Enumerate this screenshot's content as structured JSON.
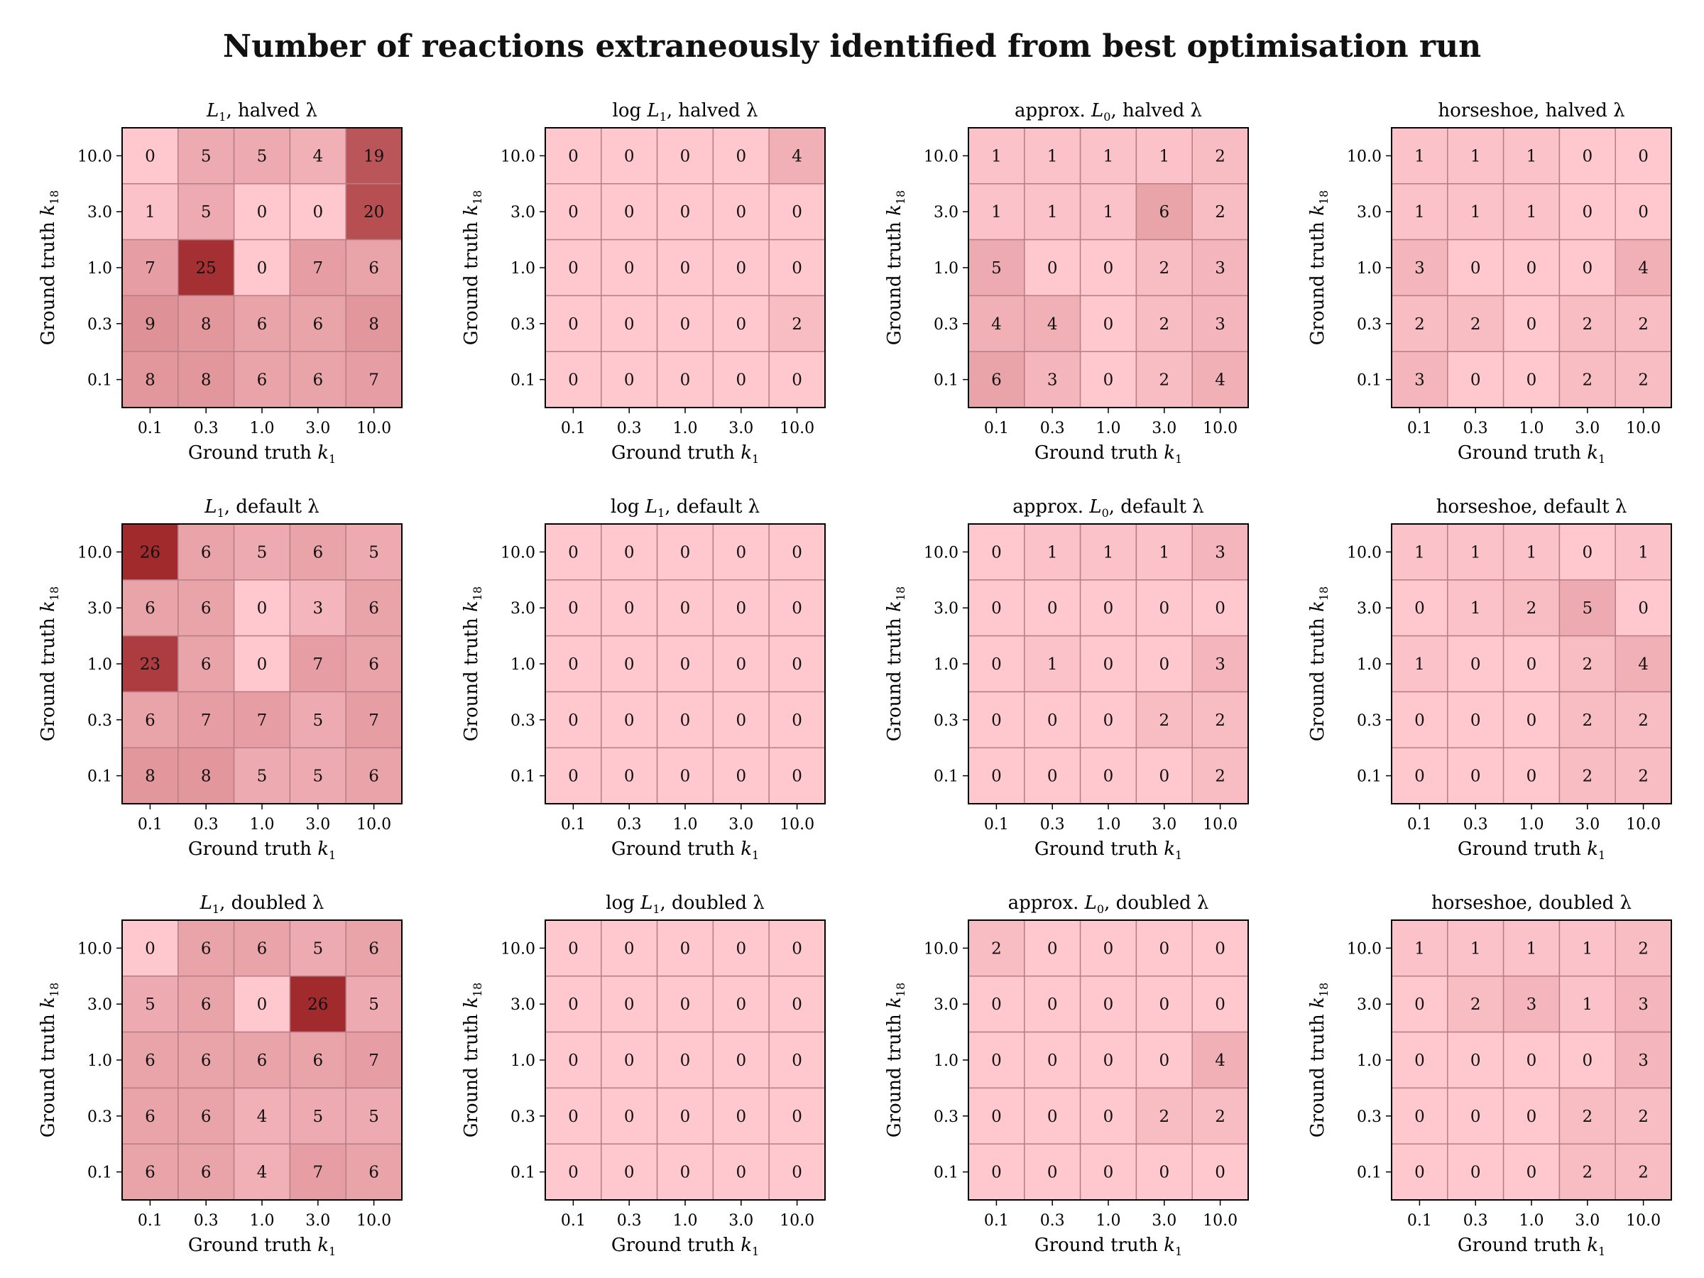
{
  "figure": {
    "title": "Number of reactions extraneously identified from best optimisation run"
  },
  "colors": {
    "low": "#ffc8cf",
    "high": "#a12a2d",
    "cell_edge": "#b87e86",
    "frame": "#000000"
  },
  "chart_data": [
    {
      "type": "heatmap",
      "title": {
        "pre": "",
        "math": "L",
        "sub": "1",
        "post": ", halved λ"
      },
      "xlabel": {
        "pre": "Ground truth ",
        "math": "k",
        "sub": "1"
      },
      "ylabel": {
        "pre": "Ground truth ",
        "math": "k",
        "sub": "18"
      },
      "x_categories": [
        "0.1",
        "0.3",
        "1.0",
        "3.0",
        "10.0"
      ],
      "y_categories": [
        "10.0",
        "3.0",
        "1.0",
        "0.3",
        "0.1"
      ],
      "values": [
        [
          0,
          5,
          5,
          4,
          19
        ],
        [
          1,
          5,
          0,
          0,
          20
        ],
        [
          7,
          25,
          0,
          7,
          6
        ],
        [
          9,
          8,
          6,
          6,
          8
        ],
        [
          8,
          8,
          6,
          6,
          7
        ]
      ]
    },
    {
      "type": "heatmap",
      "title": {
        "pre": "log ",
        "math": "L",
        "sub": "1",
        "post": ", halved λ"
      },
      "xlabel": {
        "pre": "Ground truth ",
        "math": "k",
        "sub": "1"
      },
      "ylabel": {
        "pre": "Ground truth ",
        "math": "k",
        "sub": "18"
      },
      "x_categories": [
        "0.1",
        "0.3",
        "1.0",
        "3.0",
        "10.0"
      ],
      "y_categories": [
        "10.0",
        "3.0",
        "1.0",
        "0.3",
        "0.1"
      ],
      "values": [
        [
          0,
          0,
          0,
          0,
          4
        ],
        [
          0,
          0,
          0,
          0,
          0
        ],
        [
          0,
          0,
          0,
          0,
          0
        ],
        [
          0,
          0,
          0,
          0,
          2
        ],
        [
          0,
          0,
          0,
          0,
          0
        ]
      ]
    },
    {
      "type": "heatmap",
      "title": {
        "pre": "approx. ",
        "math": "L",
        "sub": "0",
        "post": ", halved λ"
      },
      "xlabel": {
        "pre": "Ground truth ",
        "math": "k",
        "sub": "1"
      },
      "ylabel": {
        "pre": "Ground truth ",
        "math": "k",
        "sub": "18"
      },
      "x_categories": [
        "0.1",
        "0.3",
        "1.0",
        "3.0",
        "10.0"
      ],
      "y_categories": [
        "10.0",
        "3.0",
        "1.0",
        "0.3",
        "0.1"
      ],
      "values": [
        [
          1,
          1,
          1,
          1,
          2
        ],
        [
          1,
          1,
          1,
          6,
          2
        ],
        [
          5,
          0,
          0,
          2,
          3
        ],
        [
          4,
          4,
          0,
          2,
          3
        ],
        [
          6,
          3,
          0,
          2,
          4
        ]
      ]
    },
    {
      "type": "heatmap",
      "title": {
        "pre": "horseshoe, halved λ",
        "math": "",
        "sub": "",
        "post": ""
      },
      "xlabel": {
        "pre": "Ground truth ",
        "math": "k",
        "sub": "1"
      },
      "ylabel": {
        "pre": "Ground truth ",
        "math": "k",
        "sub": "18"
      },
      "x_categories": [
        "0.1",
        "0.3",
        "1.0",
        "3.0",
        "10.0"
      ],
      "y_categories": [
        "10.0",
        "3.0",
        "1.0",
        "0.3",
        "0.1"
      ],
      "values": [
        [
          1,
          1,
          1,
          0,
          0
        ],
        [
          1,
          1,
          1,
          0,
          0
        ],
        [
          3,
          0,
          0,
          0,
          4
        ],
        [
          2,
          2,
          0,
          2,
          2
        ],
        [
          3,
          0,
          0,
          2,
          2
        ]
      ]
    },
    {
      "type": "heatmap",
      "title": {
        "pre": "",
        "math": "L",
        "sub": "1",
        "post": ", default λ"
      },
      "xlabel": {
        "pre": "Ground truth ",
        "math": "k",
        "sub": "1"
      },
      "ylabel": {
        "pre": "Ground truth ",
        "math": "k",
        "sub": "18"
      },
      "x_categories": [
        "0.1",
        "0.3",
        "1.0",
        "3.0",
        "10.0"
      ],
      "y_categories": [
        "10.0",
        "3.0",
        "1.0",
        "0.3",
        "0.1"
      ],
      "values": [
        [
          26,
          6,
          5,
          6,
          5
        ],
        [
          6,
          6,
          0,
          3,
          6
        ],
        [
          23,
          6,
          0,
          7,
          6
        ],
        [
          6,
          7,
          7,
          5,
          7
        ],
        [
          8,
          8,
          5,
          5,
          6
        ]
      ]
    },
    {
      "type": "heatmap",
      "title": {
        "pre": "log ",
        "math": "L",
        "sub": "1",
        "post": ", default λ"
      },
      "xlabel": {
        "pre": "Ground truth ",
        "math": "k",
        "sub": "1"
      },
      "ylabel": {
        "pre": "Ground truth ",
        "math": "k",
        "sub": "18"
      },
      "x_categories": [
        "0.1",
        "0.3",
        "1.0",
        "3.0",
        "10.0"
      ],
      "y_categories": [
        "10.0",
        "3.0",
        "1.0",
        "0.3",
        "0.1"
      ],
      "values": [
        [
          0,
          0,
          0,
          0,
          0
        ],
        [
          0,
          0,
          0,
          0,
          0
        ],
        [
          0,
          0,
          0,
          0,
          0
        ],
        [
          0,
          0,
          0,
          0,
          0
        ],
        [
          0,
          0,
          0,
          0,
          0
        ]
      ]
    },
    {
      "type": "heatmap",
      "title": {
        "pre": "approx. ",
        "math": "L",
        "sub": "0",
        "post": ", default λ"
      },
      "xlabel": {
        "pre": "Ground truth ",
        "math": "k",
        "sub": "1"
      },
      "ylabel": {
        "pre": "Ground truth ",
        "math": "k",
        "sub": "18"
      },
      "x_categories": [
        "0.1",
        "0.3",
        "1.0",
        "3.0",
        "10.0"
      ],
      "y_categories": [
        "10.0",
        "3.0",
        "1.0",
        "0.3",
        "0.1"
      ],
      "values": [
        [
          0,
          1,
          1,
          1,
          3
        ],
        [
          0,
          0,
          0,
          0,
          0
        ],
        [
          0,
          1,
          0,
          0,
          3
        ],
        [
          0,
          0,
          0,
          2,
          2
        ],
        [
          0,
          0,
          0,
          0,
          2
        ]
      ]
    },
    {
      "type": "heatmap",
      "title": {
        "pre": "horseshoe, default λ",
        "math": "",
        "sub": "",
        "post": ""
      },
      "xlabel": {
        "pre": "Ground truth ",
        "math": "k",
        "sub": "1"
      },
      "ylabel": {
        "pre": "Ground truth ",
        "math": "k",
        "sub": "18"
      },
      "x_categories": [
        "0.1",
        "0.3",
        "1.0",
        "3.0",
        "10.0"
      ],
      "y_categories": [
        "10.0",
        "3.0",
        "1.0",
        "0.3",
        "0.1"
      ],
      "values": [
        [
          1,
          1,
          1,
          0,
          1
        ],
        [
          0,
          1,
          2,
          5,
          0
        ],
        [
          1,
          0,
          0,
          2,
          4
        ],
        [
          0,
          0,
          0,
          2,
          2
        ],
        [
          0,
          0,
          0,
          2,
          2
        ]
      ]
    },
    {
      "type": "heatmap",
      "title": {
        "pre": "",
        "math": "L",
        "sub": "1",
        "post": ", doubled λ"
      },
      "xlabel": {
        "pre": "Ground truth ",
        "math": "k",
        "sub": "1"
      },
      "ylabel": {
        "pre": "Ground truth ",
        "math": "k",
        "sub": "18"
      },
      "x_categories": [
        "0.1",
        "0.3",
        "1.0",
        "3.0",
        "10.0"
      ],
      "y_categories": [
        "10.0",
        "3.0",
        "1.0",
        "0.3",
        "0.1"
      ],
      "values": [
        [
          0,
          6,
          6,
          5,
          6
        ],
        [
          5,
          6,
          0,
          26,
          5
        ],
        [
          6,
          6,
          6,
          6,
          7
        ],
        [
          6,
          6,
          4,
          5,
          5
        ],
        [
          6,
          6,
          4,
          7,
          6
        ]
      ]
    },
    {
      "type": "heatmap",
      "title": {
        "pre": "log ",
        "math": "L",
        "sub": "1",
        "post": ", doubled λ"
      },
      "xlabel": {
        "pre": "Ground truth ",
        "math": "k",
        "sub": "1"
      },
      "ylabel": {
        "pre": "Ground truth ",
        "math": "k",
        "sub": "18"
      },
      "x_categories": [
        "0.1",
        "0.3",
        "1.0",
        "3.0",
        "10.0"
      ],
      "y_categories": [
        "10.0",
        "3.0",
        "1.0",
        "0.3",
        "0.1"
      ],
      "values": [
        [
          0,
          0,
          0,
          0,
          0
        ],
        [
          0,
          0,
          0,
          0,
          0
        ],
        [
          0,
          0,
          0,
          0,
          0
        ],
        [
          0,
          0,
          0,
          0,
          0
        ],
        [
          0,
          0,
          0,
          0,
          0
        ]
      ]
    },
    {
      "type": "heatmap",
      "title": {
        "pre": "approx. ",
        "math": "L",
        "sub": "0",
        "post": ", doubled λ"
      },
      "xlabel": {
        "pre": "Ground truth ",
        "math": "k",
        "sub": "1"
      },
      "ylabel": {
        "pre": "Ground truth ",
        "math": "k",
        "sub": "18"
      },
      "x_categories": [
        "0.1",
        "0.3",
        "1.0",
        "3.0",
        "10.0"
      ],
      "y_categories": [
        "10.0",
        "3.0",
        "1.0",
        "0.3",
        "0.1"
      ],
      "values": [
        [
          2,
          0,
          0,
          0,
          0
        ],
        [
          0,
          0,
          0,
          0,
          0
        ],
        [
          0,
          0,
          0,
          0,
          4
        ],
        [
          0,
          0,
          0,
          2,
          2
        ],
        [
          0,
          0,
          0,
          0,
          0
        ]
      ]
    },
    {
      "type": "heatmap",
      "title": {
        "pre": "horseshoe, doubled λ",
        "math": "",
        "sub": "",
        "post": ""
      },
      "xlabel": {
        "pre": "Ground truth ",
        "math": "k",
        "sub": "1"
      },
      "ylabel": {
        "pre": "Ground truth ",
        "math": "k",
        "sub": "18"
      },
      "x_categories": [
        "0.1",
        "0.3",
        "1.0",
        "3.0",
        "10.0"
      ],
      "y_categories": [
        "10.0",
        "3.0",
        "1.0",
        "0.3",
        "0.1"
      ],
      "values": [
        [
          1,
          1,
          1,
          1,
          2
        ],
        [
          0,
          2,
          3,
          1,
          3
        ],
        [
          0,
          0,
          0,
          0,
          3
        ],
        [
          0,
          0,
          0,
          2,
          2
        ],
        [
          0,
          0,
          0,
          2,
          2
        ]
      ]
    }
  ]
}
